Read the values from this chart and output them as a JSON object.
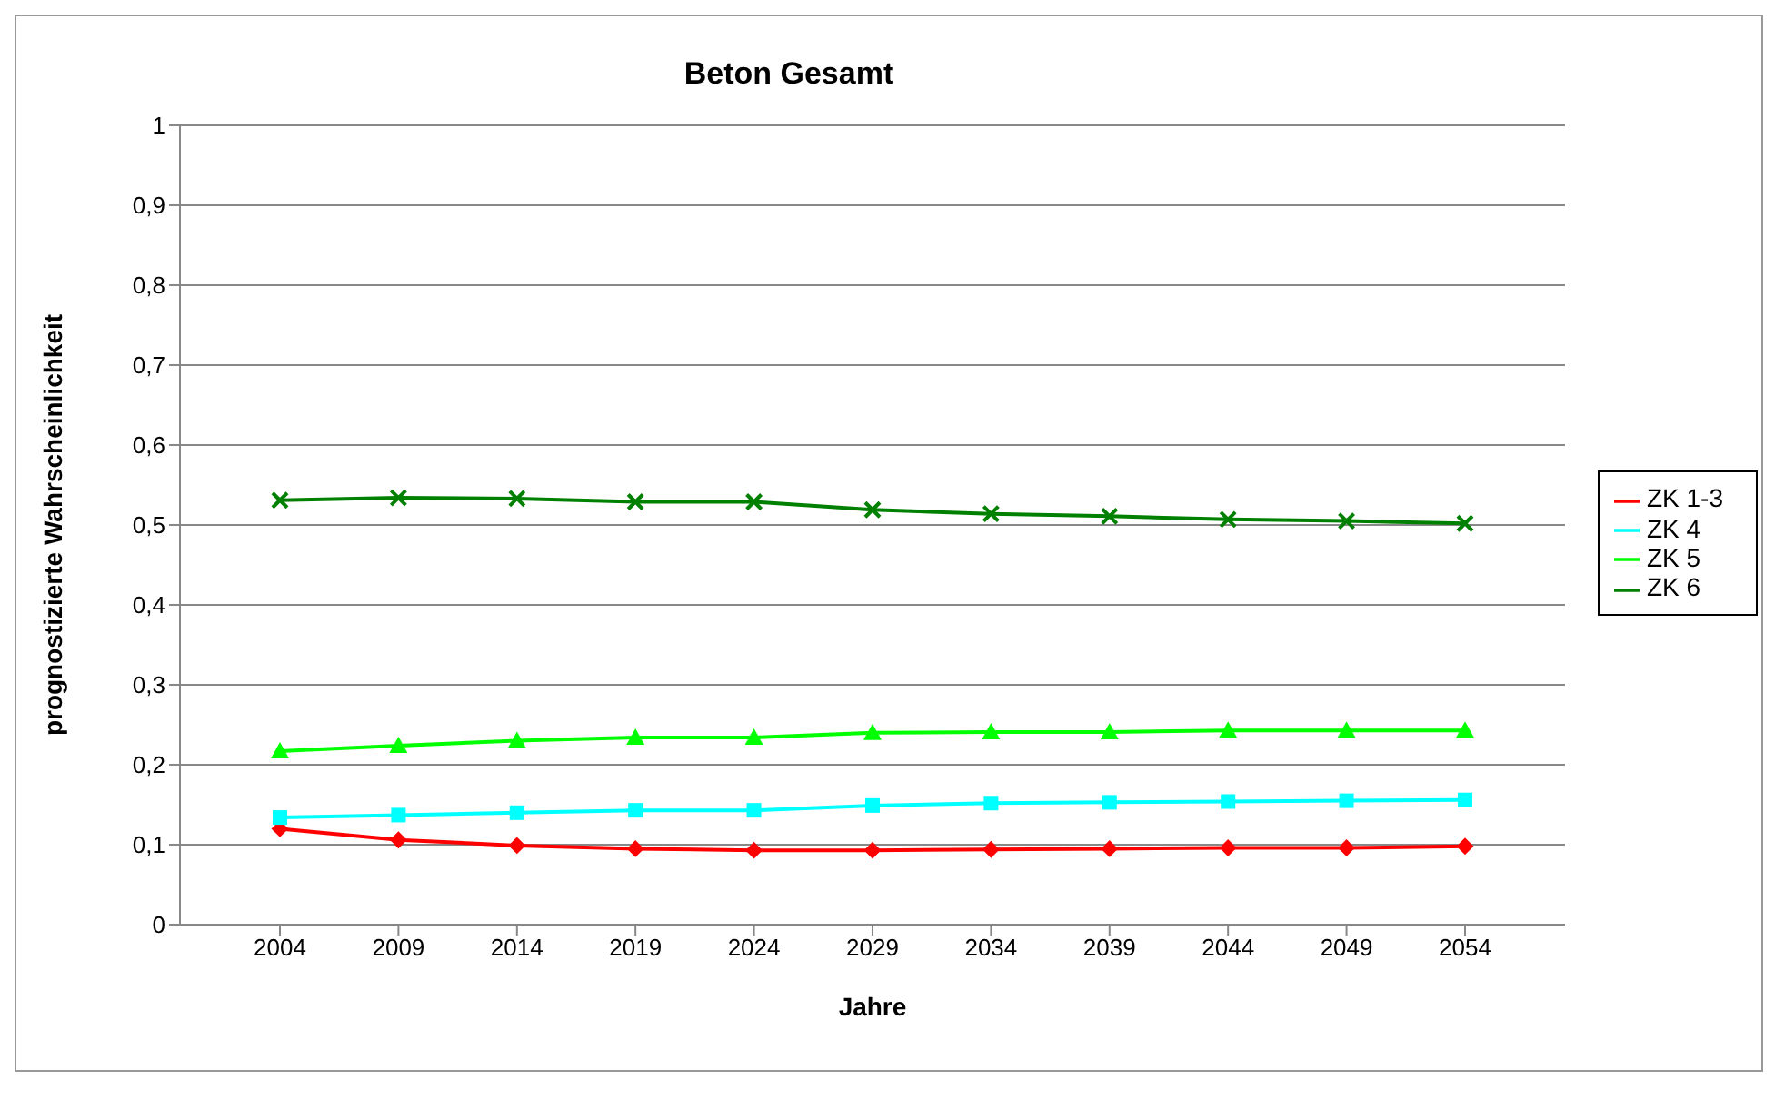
{
  "chart_data": {
    "type": "line",
    "title": "Beton Gesamt",
    "xlabel": "Jahre",
    "ylabel": "prognostizierte Wahrscheinlichkeit",
    "categories": [
      "2004",
      "2009",
      "2014",
      "2019",
      "2024",
      "2029",
      "2034",
      "2039",
      "2044",
      "2049",
      "2054"
    ],
    "series": [
      {
        "name": "ZK 1-3",
        "color": "#ff0000",
        "marker": "diamond",
        "values": [
          0.12,
          0.106,
          0.099,
          0.095,
          0.093,
          0.093,
          0.094,
          0.095,
          0.096,
          0.096,
          0.098
        ]
      },
      {
        "name": "ZK 4",
        "color": "#00ffff",
        "marker": "square",
        "values": [
          0.134,
          0.137,
          0.14,
          0.143,
          0.143,
          0.149,
          0.152,
          0.153,
          0.154,
          0.155,
          0.156
        ]
      },
      {
        "name": "ZK 5",
        "color": "#00ff00",
        "marker": "triangle",
        "values": [
          0.217,
          0.224,
          0.23,
          0.234,
          0.234,
          0.24,
          0.241,
          0.241,
          0.243,
          0.243,
          0.243
        ]
      },
      {
        "name": "ZK 6",
        "color": "#008000",
        "marker": "cross",
        "values": [
          0.531,
          0.534,
          0.533,
          0.529,
          0.529,
          0.519,
          0.514,
          0.511,
          0.507,
          0.505,
          0.502
        ]
      }
    ],
    "ylim": [
      0,
      1
    ],
    "yticks": [
      0,
      {
        "value": 0.1,
        "label": "0,1"
      },
      {
        "value": 0.2,
        "label": "0,2"
      },
      {
        "value": 0.3,
        "label": "0,3"
      },
      {
        "value": 0.4,
        "label": "0,4"
      },
      {
        "value": 0.5,
        "label": "0,5"
      },
      {
        "value": 0.6,
        "label": "0,6"
      },
      {
        "value": 0.7,
        "label": "0,7"
      },
      {
        "value": 0.8,
        "label": "0,8"
      },
      {
        "value": 0.9,
        "label": "0,9"
      },
      1
    ],
    "grid": "y",
    "legend": "right"
  }
}
